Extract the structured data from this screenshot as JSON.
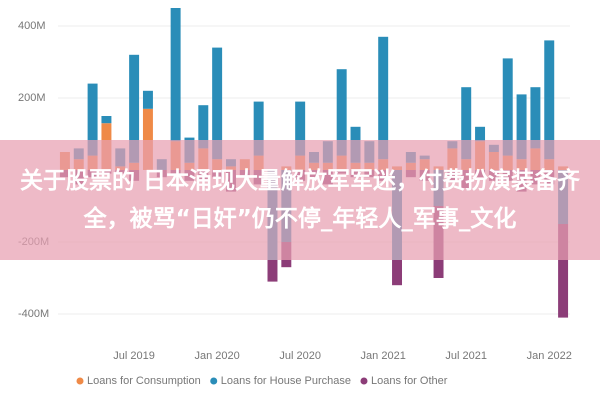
{
  "chart_data": {
    "type": "bar",
    "stacked": true,
    "categories": [
      null,
      null,
      null,
      null,
      null,
      "Jul 2019",
      null,
      null,
      null,
      null,
      null,
      "Jan 2020",
      null,
      null,
      null,
      null,
      null,
      "Jul 2020",
      null,
      null,
      null,
      null,
      null,
      "Jan 2021",
      null,
      null,
      null,
      null,
      null,
      "Jul 2021",
      null,
      null,
      null,
      null,
      null,
      "Jan 2022",
      null
    ],
    "series": [
      {
        "name": "Loans for Consumption",
        "color": "#ef8a47",
        "values": [
          50,
          30,
          40,
          130,
          10,
          20,
          170,
          0,
          80,
          20,
          60,
          30,
          10,
          30,
          40,
          0,
          10,
          40,
          20,
          20,
          40,
          20,
          20,
          30,
          10,
          20,
          30,
          10,
          60,
          30,
          80,
          50,
          40,
          30,
          60,
          30,
          10
        ]
      },
      {
        "name": "Loans for House Purchase",
        "color": "#2a8db8",
        "values": [
          0,
          30,
          200,
          20,
          50,
          300,
          50,
          30,
          370,
          70,
          120,
          310,
          20,
          0,
          150,
          -250,
          -200,
          150,
          30,
          60,
          240,
          100,
          60,
          340,
          -250,
          30,
          10,
          -100,
          20,
          200,
          40,
          20,
          270,
          180,
          170,
          330,
          -150
        ]
      },
      {
        "name": "Loans for Other",
        "color": "#8c3d78",
        "values": [
          -20,
          -40,
          -20,
          -10,
          -10,
          -30,
          0,
          -20,
          -10,
          -30,
          -30,
          -20,
          -60,
          -20,
          -40,
          -60,
          -70,
          -30,
          -20,
          -40,
          -10,
          -20,
          -20,
          -30,
          -70,
          -20,
          -30,
          -200,
          -30,
          -50,
          -20,
          -30,
          -30,
          -60,
          -40,
          -40,
          -260
        ]
      }
    ],
    "ylim": [
      -450,
      450
    ],
    "yticks": [
      {
        "value": -400,
        "label": "-400M"
      },
      {
        "value": -200,
        "label": "-200M"
      },
      {
        "value": 200,
        "label": "200M"
      },
      {
        "value": 400,
        "label": "400M"
      }
    ],
    "grid": true,
    "legend": "bottom"
  },
  "overlay": {
    "text": "关于股票的 日本涌现大量解放军军迷，付费扮演装备齐全，被骂“日奸”仍不停_年轻人_军事_文化"
  }
}
